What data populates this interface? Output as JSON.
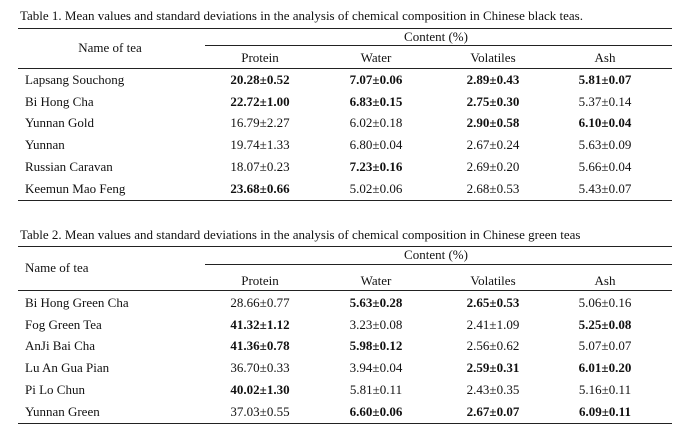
{
  "tables": [
    {
      "caption": "Table 1. Mean values and standard deviations in the analysis of chemical composition in Chinese black teas.",
      "name_header": "Name of tea",
      "group_header": "Content (%)",
      "columns": [
        "Protein",
        "Water",
        "Volatiles",
        "Ash"
      ],
      "rows": [
        {
          "name": "Lapsang Souchong",
          "cells": [
            "20.28±0.52",
            "7.07±0.06",
            "2.89±0.43",
            "5.81±0.07"
          ],
          "bold": [
            true,
            true,
            true,
            true
          ]
        },
        {
          "name": "Bi Hong Cha",
          "cells": [
            "22.72±1.00",
            "6.83±0.15",
            "2.75±0.30",
            "5.37±0.14"
          ],
          "bold": [
            true,
            true,
            true,
            false
          ]
        },
        {
          "name": "Yunnan Gold",
          "cells": [
            "16.79±2.27",
            "6.02±0.18",
            "2.90±0.58",
            "6.10±0.04"
          ],
          "bold": [
            false,
            false,
            true,
            true
          ]
        },
        {
          "name": "Yunnan",
          "cells": [
            "19.74±1.33",
            "6.80±0.04",
            "2.67±0.24",
            "5.63±0.09"
          ],
          "bold": [
            false,
            false,
            false,
            false
          ]
        },
        {
          "name": "Russian Caravan",
          "cells": [
            "18.07±0.23",
            "7.23±0.16",
            "2.69±0.20",
            "5.66±0.04"
          ],
          "bold": [
            false,
            true,
            false,
            false
          ]
        },
        {
          "name": "Keemun Mao Feng",
          "cells": [
            "23.68±0.66",
            "5.02±0.06",
            "2.68±0.53",
            "5.43±0.07"
          ],
          "bold": [
            true,
            false,
            false,
            false
          ]
        }
      ]
    },
    {
      "caption": "Table 2. Mean values and standard deviations in the analysis of chemical composition in Chinese green teas",
      "name_header": "Name of tea",
      "group_header": "Content (%)",
      "columns": [
        "Protein",
        "Water",
        "Volatiles",
        "Ash"
      ],
      "rows": [
        {
          "name": "Bi Hong Green Cha",
          "cells": [
            "28.66±0.77",
            "5.63±0.28",
            "2.65±0.53",
            "5.06±0.16"
          ],
          "bold": [
            false,
            true,
            true,
            false
          ]
        },
        {
          "name": "Fog Green Tea",
          "cells": [
            "41.32±1.12",
            "3.23±0.08",
            "2.41±1.09",
            "5.25±0.08"
          ],
          "bold": [
            true,
            false,
            false,
            true
          ]
        },
        {
          "name": "AnJi Bai Cha",
          "cells": [
            "41.36±0.78",
            "5.98±0.12",
            "2.56±0.62",
            "5.07±0.07"
          ],
          "bold": [
            true,
            true,
            false,
            false
          ]
        },
        {
          "name": "Lu An Gua Pian",
          "cells": [
            "36.70±0.33",
            "3.94±0.04",
            "2.59±0.31",
            "6.01±0.20"
          ],
          "bold": [
            false,
            false,
            true,
            true
          ]
        },
        {
          "name": "Pi Lo Chun",
          "cells": [
            "40.02±1.30",
            "5.81±0.11",
            "2.43±0.35",
            "5.16±0.11"
          ],
          "bold": [
            true,
            false,
            false,
            false
          ]
        },
        {
          "name": "Yunnan Green",
          "cells": [
            "37.03±0.55",
            "6.60±0.06",
            "2.67±0.07",
            "6.09±0.11"
          ],
          "bold": [
            false,
            true,
            true,
            true
          ]
        }
      ]
    }
  ]
}
